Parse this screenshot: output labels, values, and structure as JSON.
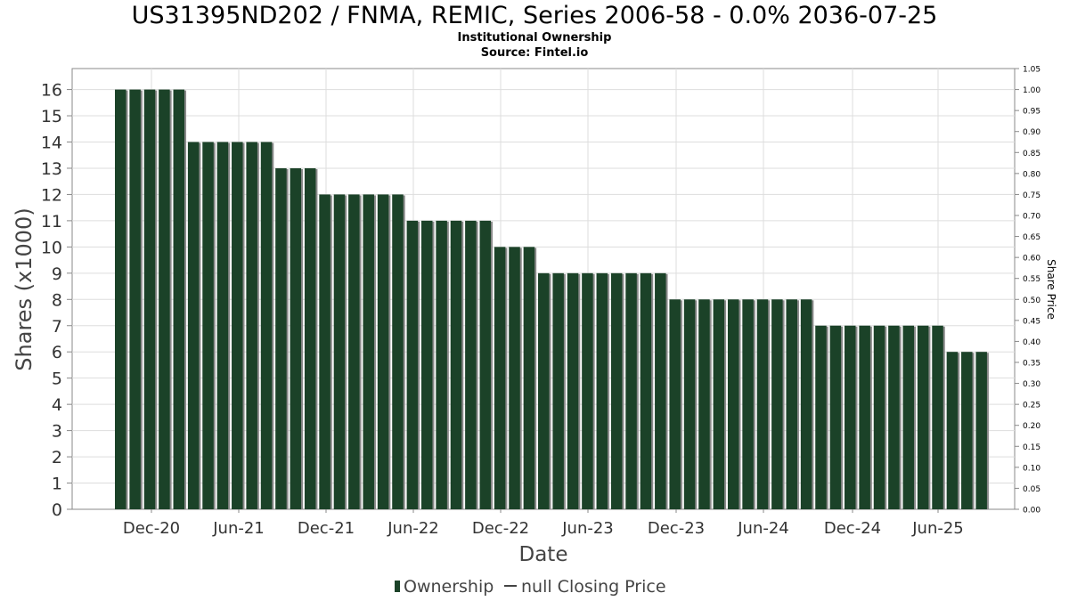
{
  "chart_data": {
    "type": "bar",
    "title": "US31395ND202 / FNMA, REMIC, Series 2006-58 - 0.0% 2036-07-25",
    "subtitle": "Institutional Ownership",
    "source": "Source: Fintel.io",
    "xlabel": "Date",
    "ylabel": "Shares (x1000)",
    "y2label": "Share Price",
    "ylim": [
      0,
      16.8
    ],
    "y2lim": [
      0,
      1.05
    ],
    "yticks": [
      "0",
      "1",
      "2",
      "3",
      "4",
      "5",
      "6",
      "7",
      "8",
      "9",
      "10",
      "11",
      "12",
      "13",
      "14",
      "15",
      "16"
    ],
    "y2ticks": [
      "0.00",
      "0.05",
      "0.10",
      "0.15",
      "0.20",
      "0.25",
      "0.30",
      "0.35",
      "0.40",
      "0.45",
      "0.50",
      "0.55",
      "0.60",
      "0.65",
      "0.70",
      "0.75",
      "0.80",
      "0.85",
      "0.90",
      "0.95",
      "1.00",
      "1.05"
    ],
    "xticks": [
      "Dec-20",
      "Jun-21",
      "Dec-21",
      "Jun-22",
      "Dec-22",
      "Jun-23",
      "Dec-23",
      "Jun-24",
      "Dec-24",
      "Jun-25"
    ],
    "grid": true,
    "legend_position": "bottom",
    "colors": {
      "bar": "#1b4228",
      "bar_shadow": "#8a8a8a",
      "grid": "#dddddd",
      "axis": "#888888"
    },
    "series": [
      {
        "name": "Ownership",
        "values": [
          16,
          16,
          16,
          16,
          16,
          14,
          14,
          14,
          14,
          14,
          14,
          13,
          13,
          13,
          12,
          12,
          12,
          12,
          12,
          12,
          11,
          11,
          11,
          11,
          11,
          11,
          10,
          10,
          10,
          9,
          9,
          9,
          9,
          9,
          9,
          9,
          9,
          9,
          8,
          8,
          8,
          8,
          8,
          8,
          8,
          8,
          8,
          8,
          7,
          7,
          7,
          7,
          7,
          7,
          7,
          7,
          7,
          6,
          6,
          6
        ]
      }
    ],
    "legend": [
      {
        "label": "Ownership",
        "marker": "bar"
      },
      {
        "label": "null Closing Price",
        "marker": "line"
      }
    ]
  }
}
